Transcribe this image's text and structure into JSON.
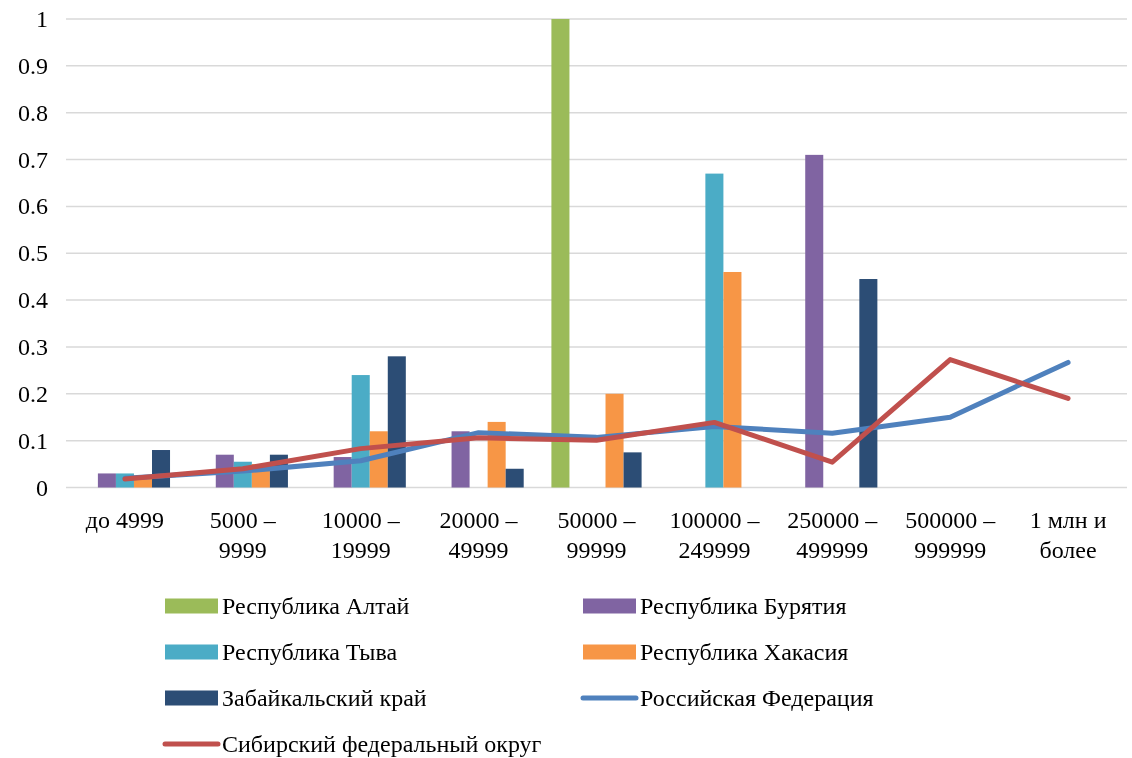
{
  "chart_data": {
    "type": "bar",
    "categories": [
      "до 4999",
      "5000 – 9999",
      "10000 – 19999",
      "20000 – 49999",
      "50000 – 99999",
      "100000 – 249999",
      "250000 – 499999",
      "500000 – 999999",
      "1 млн и более"
    ],
    "series": [
      {
        "name": "Республика Алтай",
        "color": "#9bbb59",
        "values": [
          null,
          null,
          null,
          null,
          1,
          null,
          null,
          null,
          null
        ]
      },
      {
        "name": "Республика Бурятия",
        "color": "#8064a2",
        "values": [
          0.03,
          0.07,
          0.065,
          0.12,
          null,
          null,
          0.71,
          null,
          null
        ]
      },
      {
        "name": "Республика Тыва",
        "color": "#4bacc6",
        "values": [
          0.03,
          0.055,
          0.24,
          null,
          null,
          0.67,
          null,
          null,
          null
        ]
      },
      {
        "name": "Республика Хакасия",
        "color": "#f79646",
        "values": [
          0.02,
          0.05,
          0.12,
          0.14,
          0.2,
          0.46,
          null,
          null,
          null
        ]
      },
      {
        "name": "Забайкальский край",
        "color": "#2c4d75",
        "values": [
          0.08,
          0.07,
          0.28,
          0.04,
          0.075,
          null,
          0.445,
          null,
          null
        ]
      },
      {
        "name": "Российская Федерация",
        "type": "line",
        "color": "#4f81bd",
        "values": [
          0.02,
          0.035,
          0.057,
          0.117,
          0.107,
          0.13,
          0.116,
          0.15,
          0.267
        ]
      },
      {
        "name": "Сибирский федеральный округ",
        "type": "line",
        "color": "#c0504d",
        "values": [
          0.018,
          0.04,
          0.083,
          0.106,
          0.101,
          0.139,
          0.054,
          0.273,
          0.19
        ]
      }
    ],
    "ylim": [
      0,
      1
    ],
    "yticks": [
      0,
      0.1,
      0.2,
      0.3,
      0.4,
      0.5,
      0.6,
      0.7,
      0.8,
      0.9,
      1
    ],
    "grid": "y",
    "legend": "bottom"
  }
}
